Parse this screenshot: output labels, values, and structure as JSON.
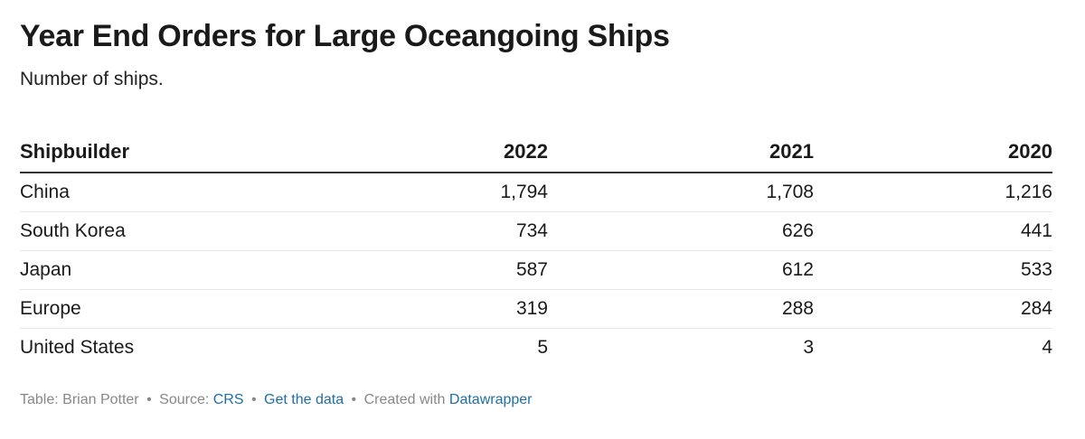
{
  "chart_data": {
    "type": "table",
    "title": "Year End Orders for Large Oceangoing Ships",
    "subtitle": "Number of ships.",
    "columns": [
      "Shipbuilder",
      "2022",
      "2021",
      "2020"
    ],
    "rows": [
      [
        "China",
        "1,794",
        "1,708",
        "1,216"
      ],
      [
        "South Korea",
        "734",
        "626",
        "441"
      ],
      [
        "Japan",
        "587",
        "612",
        "533"
      ],
      [
        "Europe",
        "319",
        "288",
        "284"
      ],
      [
        "United States",
        "5",
        "3",
        "4"
      ]
    ]
  },
  "footer": {
    "table_prefix": "Table: Brian Potter",
    "source_prefix": "Source:",
    "source_link": "CRS",
    "get_data": "Get the data",
    "created_with": "Created with",
    "tool": "Datawrapper",
    "separator": "•"
  },
  "colors": {
    "link": "#1d6fa5",
    "footer_text": "#888888",
    "header_rule": "#333333",
    "row_rule": "#e6e6e6"
  }
}
